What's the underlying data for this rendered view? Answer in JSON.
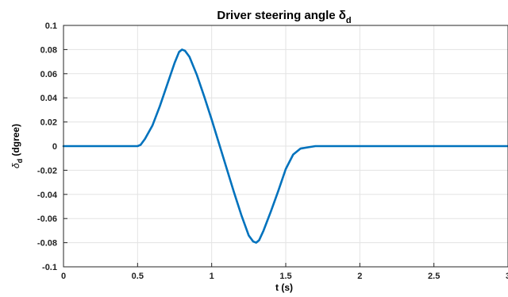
{
  "chart_data": {
    "type": "line",
    "title": "Driver steering angle δ",
    "title_subscript": "d",
    "xlabel": "t (s)",
    "ylabel_symbol": "δ",
    "ylabel_subscript": "d",
    "ylabel_unit": " (dgree)",
    "xlim": [
      0,
      3
    ],
    "ylim": [
      -0.1,
      0.1
    ],
    "grid": true,
    "line_color": "#0072BD",
    "x_ticks": [
      0,
      0.5,
      1,
      1.5,
      2,
      2.5,
      3
    ],
    "x_tick_labels": [
      "0",
      "0.5",
      "1",
      "1.5",
      "2",
      "2.5",
      "3"
    ],
    "y_ticks": [
      0.1,
      0.08,
      0.06,
      0.04,
      0.02,
      0,
      -0.02,
      -0.04,
      -0.06,
      -0.08,
      -0.1
    ],
    "y_tick_labels": [
      "0.1",
      "0.08",
      "0.06",
      "0.04",
      "0.02",
      "0",
      "-0.02",
      "-0.04",
      "-0.06",
      "-0.08",
      "-0.1"
    ],
    "series": [
      {
        "x": [
          0,
          0.25,
          0.5,
          0.52,
          0.55,
          0.6,
          0.65,
          0.7,
          0.75,
          0.78,
          0.8,
          0.82,
          0.85,
          0.9,
          0.95,
          1.0,
          1.05,
          1.1,
          1.15,
          1.2,
          1.25,
          1.28,
          1.3,
          1.32,
          1.35,
          1.4,
          1.45,
          1.5,
          1.55,
          1.6,
          1.65,
          1.7,
          1.8,
          2.0,
          2.5,
          3.0
        ],
        "y": [
          0,
          0,
          0,
          0.001,
          0.006,
          0.017,
          0.033,
          0.051,
          0.069,
          0.078,
          0.08,
          0.079,
          0.074,
          0.059,
          0.041,
          0.022,
          0.002,
          -0.018,
          -0.038,
          -0.057,
          -0.074,
          -0.079,
          -0.08,
          -0.078,
          -0.07,
          -0.054,
          -0.037,
          -0.019,
          -0.007,
          -0.002,
          -0.001,
          0,
          0,
          0,
          0,
          0
        ]
      }
    ]
  }
}
